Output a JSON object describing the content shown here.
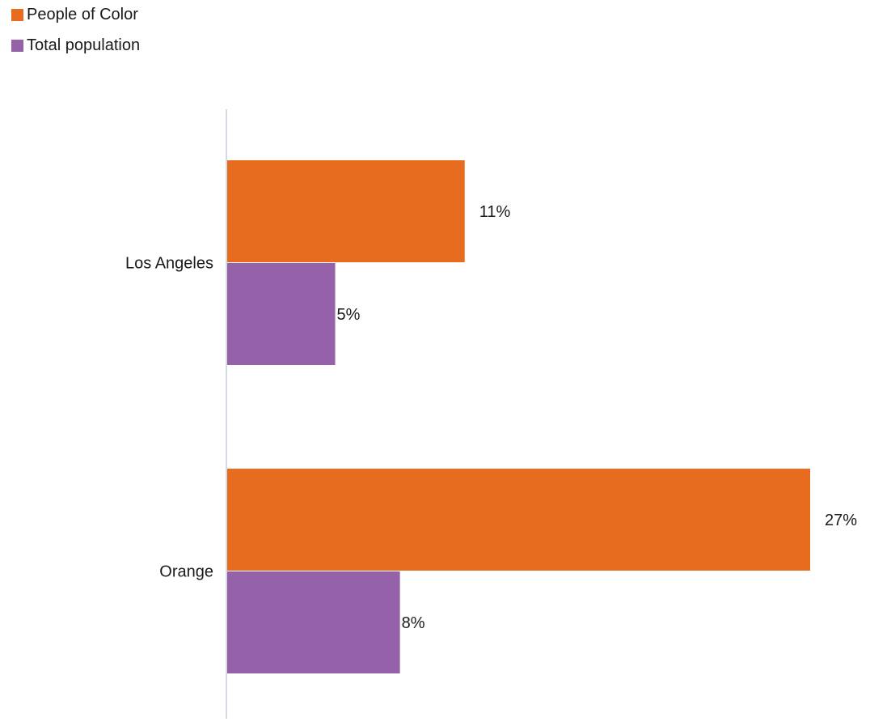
{
  "legend": [
    {
      "label": "People of Color",
      "color": "#E86C1F"
    },
    {
      "label": "Total population",
      "color": "#9562AA"
    }
  ],
  "chart_data": {
    "type": "bar",
    "orientation": "horizontal",
    "categories": [
      "Los Angeles",
      "Orange"
    ],
    "series": [
      {
        "name": "People of Color",
        "color": "#E86C1F",
        "values": [
          11,
          27
        ],
        "labels": [
          "11%",
          "27%"
        ]
      },
      {
        "name": "Total population",
        "color": "#9562AA",
        "values": [
          5,
          8
        ],
        "labels": [
          "5%",
          "8%"
        ]
      }
    ],
    "xlim": [
      0,
      27
    ],
    "value_unit": "%",
    "grid": false,
    "legend_position": "top-left",
    "axis_color": "#C5CEDC"
  }
}
